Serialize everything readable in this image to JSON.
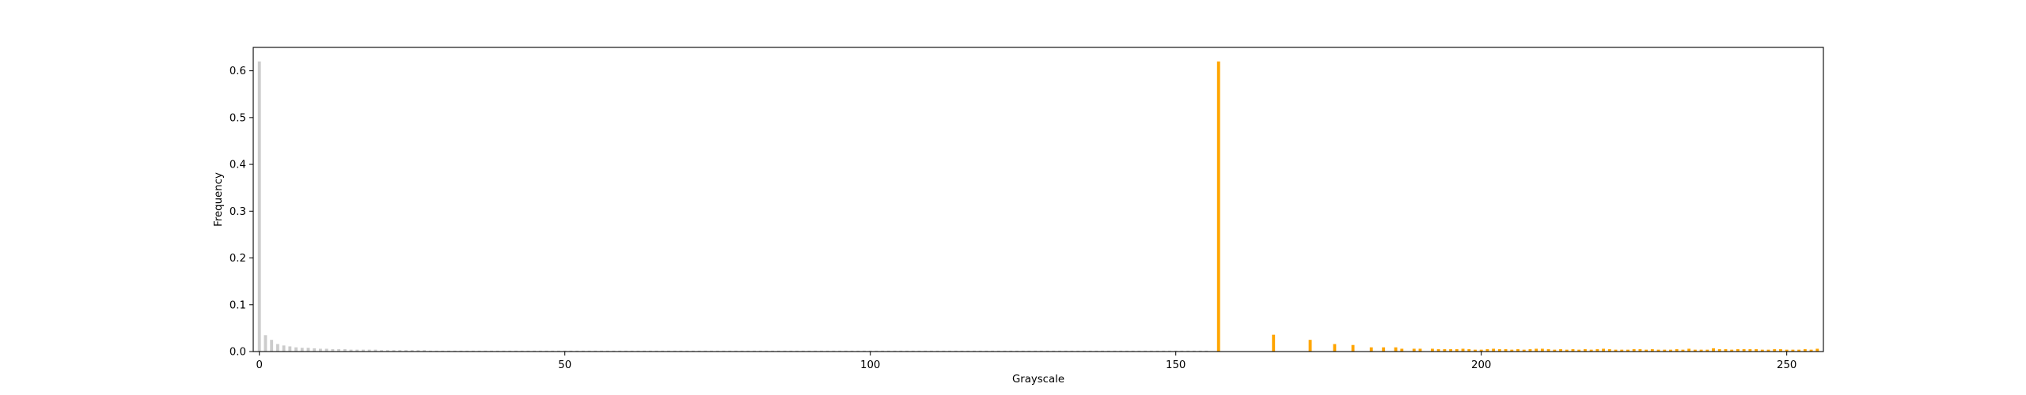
{
  "chart_data": [
    {
      "type": "bar",
      "title": "",
      "xlabel": "Grayscale",
      "ylabel": "Frequency",
      "xlim": [
        -1,
        256
      ],
      "ylim": [
        0,
        0.65
      ],
      "xticks": [
        0,
        50,
        100,
        150,
        200,
        250
      ],
      "yticks": [
        0.0,
        0.1,
        0.2,
        0.3,
        0.4,
        0.5,
        0.6
      ],
      "grid": false,
      "series": [
        {
          "color": "#cccccc",
          "x": [
            0,
            1,
            2,
            3,
            4,
            5,
            6,
            7,
            8,
            9,
            10,
            11,
            12,
            13,
            14,
            15,
            16,
            17,
            18,
            19,
            20,
            21,
            22,
            23,
            24,
            25,
            26,
            27,
            28,
            29,
            30,
            31,
            32,
            33,
            34,
            35,
            36,
            37,
            38,
            39,
            40,
            41,
            42,
            43,
            44,
            45,
            46,
            47,
            48,
            49,
            50,
            51,
            52,
            53,
            54,
            55,
            56,
            57,
            58,
            59,
            60,
            61,
            62,
            63,
            64,
            65,
            66,
            67,
            68,
            69,
            70,
            71,
            72,
            73,
            74,
            75,
            76,
            77,
            78,
            79,
            80,
            81,
            82,
            83,
            84,
            85,
            86,
            87,
            88,
            89,
            90,
            91,
            92,
            93,
            94,
            95,
            96,
            97,
            98,
            99,
            100,
            101,
            102,
            103,
            104,
            105,
            106,
            107,
            108,
            109,
            110,
            111,
            112,
            113,
            114,
            115,
            116,
            117,
            118,
            119,
            120,
            121,
            122,
            123,
            124,
            125,
            126,
            127,
            128,
            129,
            130,
            131,
            132,
            133,
            134,
            135,
            136,
            137,
            138,
            139,
            140,
            141,
            142,
            143,
            144,
            145,
            146,
            147,
            148,
            149,
            150,
            151,
            152,
            153,
            154,
            155
          ],
          "values": [
            0.62,
            0.035,
            0.025,
            0.016,
            0.013,
            0.011,
            0.009,
            0.008,
            0.008,
            0.007,
            0.006,
            0.006,
            0.005,
            0.005,
            0.005,
            0.004,
            0.004,
            0.004,
            0.004,
            0.004,
            0.003,
            0.003,
            0.003,
            0.003,
            0.003,
            0.003,
            0.003,
            0.003,
            0.002,
            0.002,
            0.002,
            0.002,
            0.002,
            0.002,
            0.002,
            0.002,
            0.002,
            0.002,
            0.002,
            0.002,
            0.002,
            0.002,
            0.002,
            0.002,
            0.002,
            0.002,
            0.002,
            0.002,
            0.002,
            0.002,
            0.002,
            0.002,
            0.002,
            0.002,
            0.002,
            0.002,
            0.002,
            0.002,
            0.002,
            0.002,
            0.002,
            0.002,
            0.002,
            0.002,
            0.002,
            0.002,
            0.002,
            0.002,
            0.002,
            0.002,
            0.002,
            0.002,
            0.002,
            0.002,
            0.002,
            0.002,
            0.002,
            0.002,
            0.002,
            0.002,
            0.002,
            0.002,
            0.002,
            0.002,
            0.002,
            0.002,
            0.002,
            0.002,
            0.002,
            0.002,
            0.002,
            0.002,
            0.002,
            0.002,
            0.002,
            0.002,
            0.002,
            0.002,
            0.002,
            0.002,
            0.002,
            0.002,
            0.002,
            0.002,
            0.002,
            0.002,
            0.002,
            0.002,
            0.002,
            0.002,
            0.002,
            0.002,
            0.002,
            0.002,
            0.002,
            0.002,
            0.002,
            0.002,
            0.002,
            0.002,
            0.002,
            0.002,
            0.002,
            0.002,
            0.002,
            0.002,
            0.002,
            0.002,
            0.002,
            0.002,
            0.002,
            0.002,
            0.002,
            0.002,
            0.002,
            0.002,
            0.002,
            0.002,
            0.002,
            0.002,
            0.002,
            0.002,
            0.002,
            0.002,
            0.002,
            0.002,
            0.002,
            0.002,
            0.002,
            0.002,
            0.002,
            0.002,
            0.002,
            0.002,
            0.002,
            0.002
          ]
        },
        {
          "color": "#ffa500",
          "x": [
            157,
            166,
            172,
            176,
            179,
            182,
            184,
            186,
            187,
            189,
            190,
            192,
            193,
            194,
            195,
            196,
            197,
            198,
            199,
            200,
            201,
            202,
            203,
            204,
            205,
            206,
            207,
            208,
            209,
            210,
            211,
            212,
            213,
            214,
            215,
            216,
            217,
            218,
            219,
            220,
            221,
            222,
            223,
            224,
            225,
            226,
            227,
            228,
            229,
            230,
            231,
            232,
            233,
            234,
            235,
            236,
            237,
            238,
            239,
            240,
            241,
            242,
            243,
            244,
            245,
            246,
            247,
            248,
            249,
            250,
            251,
            252,
            253,
            254,
            255
          ],
          "values": [
            0.62,
            0.036,
            0.025,
            0.016,
            0.014,
            0.009,
            0.009,
            0.009,
            0.006,
            0.006,
            0.006,
            0.006,
            0.005,
            0.005,
            0.005,
            0.005,
            0.006,
            0.005,
            0.004,
            0.004,
            0.005,
            0.006,
            0.005,
            0.005,
            0.004,
            0.005,
            0.004,
            0.005,
            0.006,
            0.006,
            0.005,
            0.004,
            0.005,
            0.004,
            0.005,
            0.004,
            0.005,
            0.004,
            0.005,
            0.006,
            0.005,
            0.004,
            0.004,
            0.004,
            0.005,
            0.005,
            0.004,
            0.005,
            0.004,
            0.004,
            0.004,
            0.005,
            0.004,
            0.006,
            0.004,
            0.004,
            0.004,
            0.007,
            0.005,
            0.005,
            0.004,
            0.005,
            0.005,
            0.005,
            0.005,
            0.004,
            0.004,
            0.005,
            0.005,
            0.004,
            0.004,
            0.004,
            0.005,
            0.004,
            0.006
          ]
        }
      ]
    }
  ]
}
